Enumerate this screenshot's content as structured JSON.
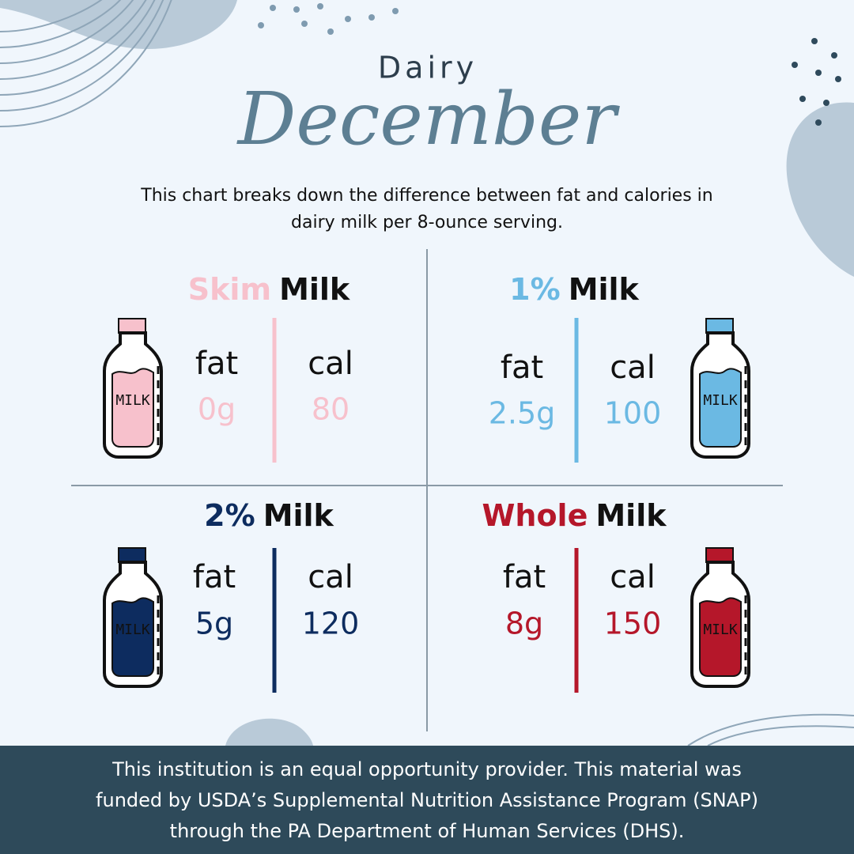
{
  "header": {
    "kicker": "Dairy",
    "title": "December",
    "intro": [
      "This chart breaks down the difference between fat and calories in",
      "dairy milk per 8-ounce serving."
    ]
  },
  "cards": [
    {
      "accent": "Skim",
      "label": "Milk",
      "fat_label": "fat",
      "fat": "0g",
      "cal_label": "cal",
      "cal": "80",
      "bottle_label": "MILK",
      "color": "#f7c1cc"
    },
    {
      "accent": "1%",
      "label": "Milk",
      "fat_label": "fat",
      "fat": "2.5g",
      "cal_label": "cal",
      "cal": "100",
      "bottle_label": "MILK",
      "color": "#6bb9e3"
    },
    {
      "accent": "2%",
      "label": "Milk",
      "fat_label": "fat",
      "fat": "5g",
      "cal_label": "cal",
      "cal": "120",
      "bottle_label": "MILK",
      "color": "#0d2c5f"
    },
    {
      "accent": "Whole",
      "label": "Milk",
      "fat_label": "fat",
      "fat": "8g",
      "cal_label": "cal",
      "cal": "150",
      "bottle_label": "MILK",
      "color": "#b5172a"
    }
  ],
  "footer": [
    "This institution is an equal opportunity provider. This material was",
    "funded by USDA’s Supplemental Nutrition Assistance Program (SNAP)",
    "through the PA Department of Human Services (DHS)."
  ]
}
